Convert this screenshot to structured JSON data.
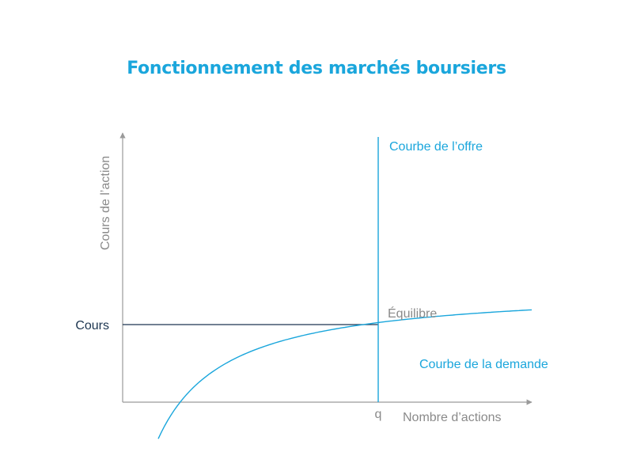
{
  "chart_data": {
    "type": "line",
    "title": "Fonctionnement des marchés boursiers",
    "xlabel": "Nombre d’actions",
    "ylabel": "Cours de l’action",
    "x_ticks": [
      "q"
    ],
    "y_ticks": [
      "Cours"
    ],
    "series": [
      {
        "name": "Courbe de l’offre",
        "kind": "vertical",
        "x": 0.62
      },
      {
        "name": "Courbe de la demande",
        "kind": "curve"
      }
    ],
    "annotations": [
      "Équilibre"
    ],
    "equilibrium": {
      "x": 0.62,
      "y": 0.3
    },
    "xlim": [
      0,
      1
    ],
    "ylim": [
      0,
      1
    ],
    "grid": false
  },
  "colors": {
    "accent": "#1aa6dc",
    "axis": "#9a9a9a",
    "label": "#8a8a8a",
    "price_line": "#1c3550"
  }
}
